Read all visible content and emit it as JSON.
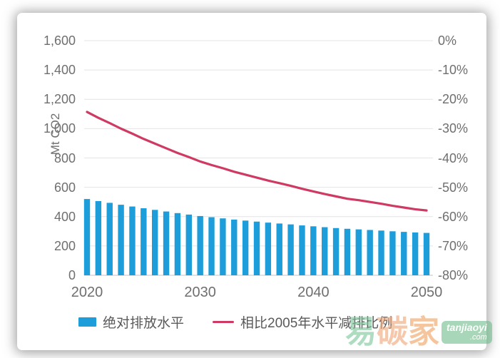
{
  "axes": {
    "left_title": "Mt CO2",
    "left_ticks": [
      "1,600",
      "1,400",
      "1,200",
      "1,000",
      "800",
      "600",
      "400",
      "200",
      "0"
    ],
    "right_ticks": [
      "0%",
      "-10%",
      "-20%",
      "-30%",
      "-40%",
      "-50%",
      "-60%",
      "-70%",
      "-80%"
    ],
    "x_ticks": [
      "2020",
      "2030",
      "2040",
      "2050"
    ]
  },
  "legend": [
    {
      "label": "绝对排放水平",
      "marker": "square",
      "color": "#1d9dda"
    },
    {
      "label": "相比2005年水平减排比例",
      "marker": "line",
      "color": "#cf3a62"
    }
  ],
  "colors": {
    "bar": "#1d9dda",
    "line": "#cf3a62",
    "gridline": "#e4e4e4",
    "axis_line": "#cfcfcf",
    "tick_text": "#6f6f6f"
  },
  "watermark": {
    "char1": "易",
    "char2": "碳",
    "char3": "家",
    "char_colors": [
      "#7ec89b",
      "#f0a878",
      "#efa262"
    ],
    "badge_line1": "tanjiaoyi",
    "badge_line2": ".com"
  },
  "chart_data": {
    "type": "combo-bar-line",
    "x": [
      2020,
      2021,
      2022,
      2023,
      2024,
      2025,
      2026,
      2027,
      2028,
      2029,
      2030,
      2031,
      2032,
      2033,
      2034,
      2035,
      2036,
      2037,
      2038,
      2039,
      2040,
      2041,
      2042,
      2043,
      2044,
      2045,
      2046,
      2047,
      2048,
      2049,
      2050
    ],
    "series": [
      {
        "name": "绝对排放水平",
        "type": "bar",
        "axis": "left",
        "unit": "Mt CO2",
        "values": [
          520,
          506,
          494,
          481,
          469,
          457,
          446,
          435,
          424,
          414,
          404,
          396,
          388,
          380,
          373,
          366,
          359,
          353,
          347,
          340,
          334,
          328,
          322,
          317,
          313,
          309,
          305,
          300,
          296,
          292,
          289
        ]
      },
      {
        "name": "相比2005年水平减排比例",
        "type": "line",
        "axis": "right",
        "unit": "%",
        "values": [
          -24.3,
          -26.3,
          -28.1,
          -30.0,
          -31.7,
          -33.5,
          -35.1,
          -36.7,
          -38.3,
          -39.7,
          -41.2,
          -42.4,
          -43.5,
          -44.7,
          -45.7,
          -46.7,
          -47.7,
          -48.6,
          -49.5,
          -50.5,
          -51.4,
          -52.3,
          -53.1,
          -53.9,
          -54.4,
          -55.0,
          -55.6,
          -56.3,
          -56.9,
          -57.5,
          -57.9
        ]
      }
    ],
    "y_left": {
      "label": "Mt CO2",
      "range": [
        0,
        1600
      ],
      "tick_step": 200
    },
    "y_right": {
      "label": "",
      "range": [
        0,
        -80
      ],
      "tick_step": -10
    },
    "grid": "horizontal",
    "legend_position": "bottom"
  }
}
